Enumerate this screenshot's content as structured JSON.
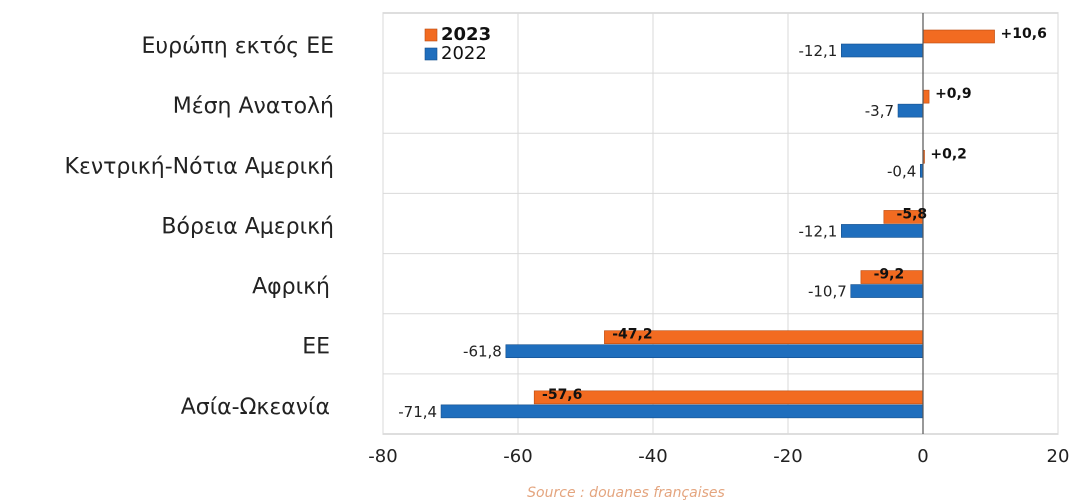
{
  "chart_data": {
    "type": "bar",
    "orientation": "horizontal",
    "title": "",
    "xlabel": "",
    "ylabel": "",
    "categories": [
      "Ευρώπη εκτός ΕΕ",
      "Μέση Ανατολή",
      "Κεντρική-Νότια Αμερική",
      "Βόρεια Αμερική",
      "Αφρική",
      "ΕΕ",
      "Ασία-Ωκεανία"
    ],
    "series": [
      {
        "name": "2023",
        "color": "#f26b21",
        "values": [
          10.6,
          0.9,
          0.2,
          -5.8,
          -9.2,
          -47.2,
          -57.6
        ],
        "labels": [
          "+10,6",
          "+0,9",
          "+0,2",
          "-5,8",
          "-9,2",
          "-47,2",
          "-57,6"
        ]
      },
      {
        "name": "2022",
        "color": "#1f6ebd",
        "values": [
          -12.1,
          -3.7,
          -0.4,
          -12.1,
          -10.7,
          -61.8,
          -71.4
        ],
        "labels": [
          "-12,1",
          "-3,7",
          "-0,4",
          "-12,1",
          "-10,7",
          "-61,8",
          "-71,4"
        ]
      }
    ],
    "xlim": [
      -80,
      20
    ],
    "xticks": [
      -80,
      -60,
      -40,
      -20,
      0,
      20
    ],
    "xtick_labels": [
      "-80",
      "-60",
      "-40",
      "-20",
      "0",
      "20"
    ],
    "grid": true,
    "legend": {
      "position": "top-left",
      "entries": [
        "2023",
        "2022"
      ]
    },
    "source": "Source : douanes françaises"
  }
}
